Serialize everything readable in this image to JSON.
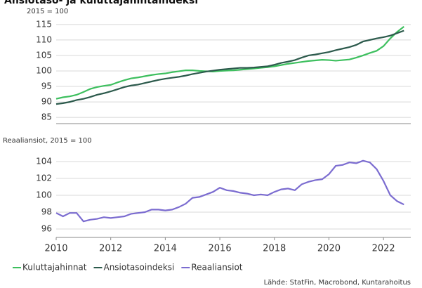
{
  "title": "Ansiotaso- ja kuluttajahintaindeksi",
  "source": "Lähde: StatFin, Macrobond, Kuntarahoitus",
  "chart_data": [
    {
      "type": "line",
      "y_label": "2015 = 100",
      "x": [
        2010,
        2010.25,
        2010.5,
        2010.75,
        2011,
        2011.25,
        2011.5,
        2011.75,
        2012,
        2012.25,
        2012.5,
        2012.75,
        2013,
        2013.25,
        2013.5,
        2013.75,
        2014,
        2014.25,
        2014.5,
        2014.75,
        2015,
        2015.25,
        2015.5,
        2015.75,
        2016,
        2016.25,
        2016.5,
        2016.75,
        2017,
        2017.25,
        2017.5,
        2017.75,
        2018,
        2018.25,
        2018.5,
        2018.75,
        2019,
        2019.25,
        2019.5,
        2019.75,
        2020,
        2020.25,
        2020.5,
        2020.75,
        2021,
        2021.25,
        2021.5,
        2021.75,
        2022,
        2022.25,
        2022.5,
        2022.75
      ],
      "xlim": [
        2010,
        2023
      ],
      "ylim": [
        83,
        117
      ],
      "yticks": [
        85,
        90,
        95,
        100,
        105,
        110,
        115
      ],
      "grid": true,
      "series": [
        {
          "name": "Kuluttajahinnat",
          "color": "#3dbf5e",
          "values": [
            91.0,
            91.5,
            91.8,
            92.3,
            93.2,
            94.2,
            94.8,
            95.2,
            95.5,
            96.3,
            97.0,
            97.6,
            97.9,
            98.3,
            98.7,
            99.0,
            99.2,
            99.6,
            99.9,
            100.2,
            100.2,
            100.0,
            99.9,
            99.8,
            100.0,
            100.1,
            100.2,
            100.4,
            100.6,
            100.8,
            101.0,
            101.2,
            101.5,
            101.9,
            102.3,
            102.6,
            102.9,
            103.2,
            103.4,
            103.6,
            103.5,
            103.3,
            103.5,
            103.7,
            104.3,
            105.0,
            105.8,
            106.5,
            108.0,
            110.5,
            112.6,
            114.3
          ]
        },
        {
          "name": "Ansiotasoindeksi",
          "color": "#2c5a4c",
          "values": [
            89.3,
            89.6,
            90.0,
            90.6,
            91.0,
            91.6,
            92.3,
            92.8,
            93.4,
            94.1,
            94.8,
            95.3,
            95.6,
            96.1,
            96.6,
            97.1,
            97.5,
            97.8,
            98.1,
            98.5,
            99.0,
            99.4,
            99.8,
            100.1,
            100.4,
            100.6,
            100.8,
            101.0,
            101.0,
            101.1,
            101.3,
            101.5,
            102.0,
            102.6,
            103.0,
            103.5,
            104.3,
            105.0,
            105.3,
            105.7,
            106.1,
            106.7,
            107.2,
            107.7,
            108.4,
            109.5,
            110.0,
            110.5,
            110.9,
            111.4,
            112.2,
            113.0
          ]
        }
      ]
    },
    {
      "type": "line",
      "y_label": "Reaaliansiot, 2015 = 100",
      "x": [
        2010,
        2010.25,
        2010.5,
        2010.75,
        2011,
        2011.25,
        2011.5,
        2011.75,
        2012,
        2012.25,
        2012.5,
        2012.75,
        2013,
        2013.25,
        2013.5,
        2013.75,
        2014,
        2014.25,
        2014.5,
        2014.75,
        2015,
        2015.25,
        2015.5,
        2015.75,
        2016,
        2016.25,
        2016.5,
        2016.75,
        2017,
        2017.25,
        2017.5,
        2017.75,
        2018,
        2018.25,
        2018.5,
        2018.75,
        2019,
        2019.25,
        2019.5,
        2019.75,
        2020,
        2020.25,
        2020.5,
        2020.75,
        2021,
        2021.25,
        2021.5,
        2021.75,
        2022,
        2022.25,
        2022.5,
        2022.75
      ],
      "xlim": [
        2010,
        2023
      ],
      "xticks": [
        2010,
        2012,
        2014,
        2016,
        2018,
        2020,
        2022
      ],
      "ylim": [
        95,
        105.5
      ],
      "yticks": [
        96,
        98,
        100,
        102,
        104
      ],
      "grid": true,
      "series": [
        {
          "name": "Reaaliansiot",
          "color": "#7b6cd0",
          "values": [
            97.9,
            97.5,
            97.9,
            97.9,
            96.9,
            97.1,
            97.2,
            97.4,
            97.3,
            97.4,
            97.5,
            97.8,
            97.9,
            98.0,
            98.3,
            98.3,
            98.2,
            98.3,
            98.6,
            99.0,
            99.7,
            99.8,
            100.1,
            100.4,
            100.9,
            100.6,
            100.5,
            100.3,
            100.2,
            100.0,
            100.1,
            100.0,
            100.4,
            100.7,
            100.8,
            100.6,
            101.3,
            101.6,
            101.8,
            101.9,
            102.5,
            103.5,
            103.6,
            103.9,
            103.8,
            104.1,
            103.9,
            103.1,
            101.7,
            100.0,
            99.3,
            98.9
          ]
        }
      ]
    }
  ]
}
